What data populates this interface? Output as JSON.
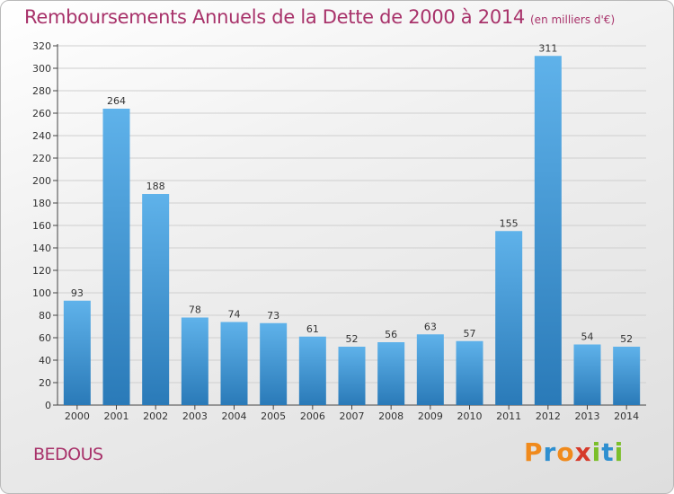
{
  "header": {
    "title": "Remboursements Annuels de la Dette de 2000 à 2014",
    "unit": "(en milliers d'€)"
  },
  "footer": {
    "place": "BEDOUS",
    "logo_text": "Proxiti"
  },
  "colors": {
    "title": "#a8326a",
    "bar_top": "#5fb2ea",
    "bar_bottom": "#2a7ab8",
    "grid": "#cfcfcf",
    "logo_letters": [
      "#f08a1c",
      "#2e8fd0",
      "#f08a1c",
      "#d63a2a",
      "#7bbf2a",
      "#2e8fd0",
      "#7bbf2a"
    ]
  },
  "chart_data": {
    "type": "bar",
    "title": "Remboursements Annuels de la Dette de 2000 à 2014",
    "xlabel": "",
    "ylabel": "",
    "categories": [
      "2000",
      "2001",
      "2002",
      "2003",
      "2004",
      "2005",
      "2006",
      "2007",
      "2008",
      "2009",
      "2010",
      "2011",
      "2012",
      "2013",
      "2014"
    ],
    "values": [
      93,
      264,
      188,
      78,
      74,
      73,
      61,
      52,
      56,
      63,
      57,
      155,
      311,
      54,
      52
    ],
    "ylim": [
      0,
      320
    ],
    "yticks": [
      0,
      20,
      40,
      60,
      80,
      100,
      120,
      140,
      160,
      180,
      200,
      220,
      240,
      260,
      280,
      300,
      320
    ],
    "grid": true,
    "legend": "none"
  }
}
